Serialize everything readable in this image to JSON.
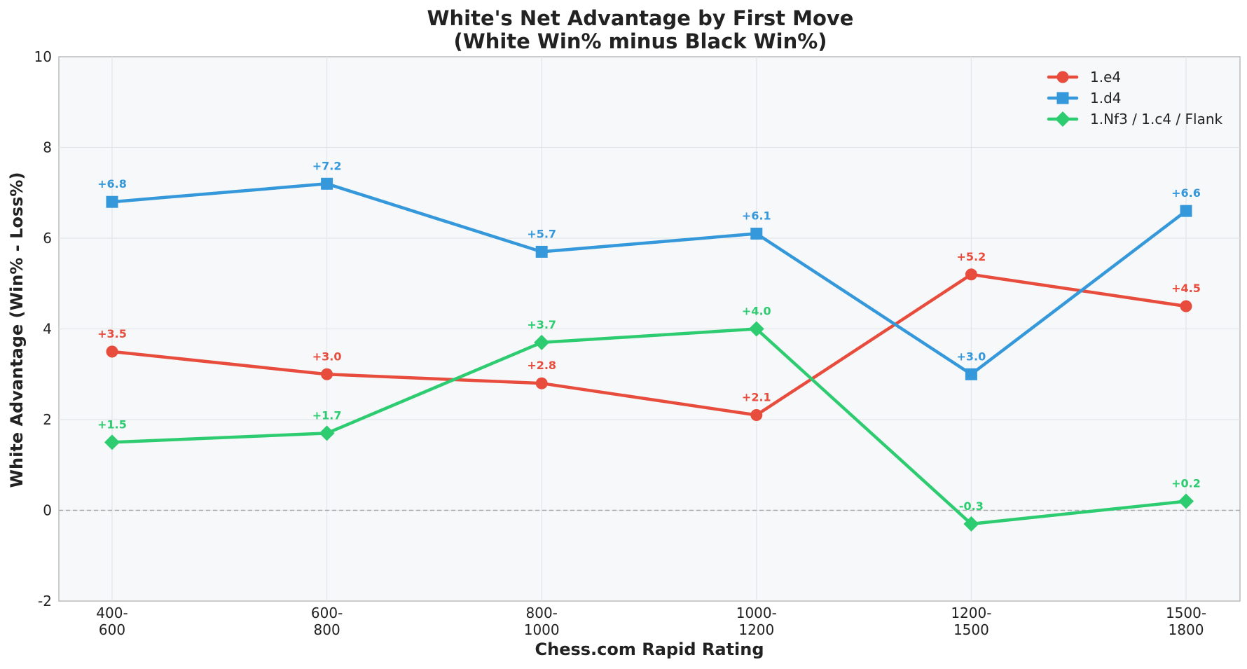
{
  "chart_data": {
    "type": "line",
    "title": "White's Net Advantage by First Move",
    "subtitle": "(White Win% minus Black Win%)",
    "xlabel": "Chess.com Rapid Rating",
    "ylabel": "White Advantage (Win% - Loss%)",
    "categories": [
      [
        "400-",
        "600"
      ],
      [
        "600-",
        "800"
      ],
      [
        "800-",
        "1000"
      ],
      [
        "1000-",
        "1200"
      ],
      [
        "1200-",
        "1500"
      ],
      [
        "1500-",
        "1800"
      ]
    ],
    "ylim": [
      -2,
      10
    ],
    "yticks": [
      -2,
      0,
      2,
      4,
      6,
      8,
      10
    ],
    "grid": true,
    "reference_line": 0,
    "legend_position": "top-right",
    "series": [
      {
        "name": "1.e4",
        "color": "#e74c3c",
        "marker": "circle",
        "values": [
          3.5,
          3.0,
          2.8,
          2.1,
          5.2,
          4.5
        ],
        "labels": [
          "+3.5",
          "+3.0",
          "+2.8",
          "+2.1",
          "+5.2",
          "+4.5"
        ]
      },
      {
        "name": "1.d4",
        "color": "#3498db",
        "marker": "square",
        "values": [
          6.8,
          7.2,
          5.7,
          6.1,
          3.0,
          6.6
        ],
        "labels": [
          "+6.8",
          "+7.2",
          "+5.7",
          "+6.1",
          "+3.0",
          "+6.6"
        ]
      },
      {
        "name": "1.Nf3 / 1.c4 / Flank",
        "color": "#2ecc71",
        "marker": "diamond",
        "values": [
          1.5,
          1.7,
          3.7,
          4.0,
          -0.3,
          0.2
        ],
        "labels": [
          "+1.5",
          "+1.7",
          "+3.7",
          "+4.0",
          "-0.3",
          "+0.2"
        ]
      }
    ]
  }
}
